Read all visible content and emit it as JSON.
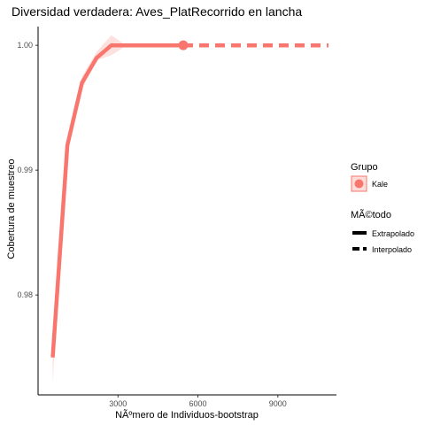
{
  "chart_data": {
    "type": "line",
    "title": "Diversidad verdadera: Aves_PlatRecorrido en lancha",
    "xlabel": "NÃºmero de Individuos-bootstrap",
    "ylabel": "Cobertura de muestreo",
    "xlim": [
      0,
      11200
    ],
    "ylim": [
      0.972,
      1.0015
    ],
    "x_ticks": [
      3000,
      6000,
      9000
    ],
    "x_tick_labels": [
      "3000",
      "6000",
      "9000"
    ],
    "y_ticks": [
      0.98,
      0.99,
      1.0
    ],
    "y_tick_labels": [
      "0.98",
      "0.99",
      "1.00"
    ],
    "grid": false,
    "legend_position": "right",
    "legend": {
      "group_title": "Grupo",
      "group_items": [
        {
          "label": "Kale",
          "color": "#F8766D"
        }
      ],
      "method_title": "MÃ©todo",
      "method_items": [
        {
          "label": "Extrapolado",
          "linetype": "solid"
        },
        {
          "label": "Interpolado",
          "linetype": "dashed"
        }
      ]
    },
    "series": [
      {
        "name": "Kale",
        "color": "#F8766D",
        "interpolated": {
          "x": [
            550,
            1100,
            1650,
            2200,
            2750,
            3300,
            3850,
            4400,
            4950,
            5450
          ],
          "y": [
            0.975,
            0.992,
            0.997,
            0.999,
            1.0,
            1.0,
            1.0,
            1.0,
            1.0,
            1.0
          ]
        },
        "observed": {
          "x": 5450,
          "y": 1.0
        },
        "extrapolated": {
          "x": [
            5450,
            6500,
            7500,
            8500,
            9500,
            10900
          ],
          "y": [
            1.0,
            1.0,
            1.0,
            1.0,
            1.0,
            1.0
          ]
        },
        "ci_lower": [
          0.973,
          0.9915,
          0.9965,
          0.9988,
          0.9992,
          0.99995,
          1.0,
          1.0,
          1.0,
          1.0
        ],
        "ci_upper": [
          0.977,
          0.9925,
          0.9975,
          0.9995,
          1.0008,
          1.0,
          1.0,
          1.0,
          1.0,
          1.0
        ]
      }
    ]
  }
}
